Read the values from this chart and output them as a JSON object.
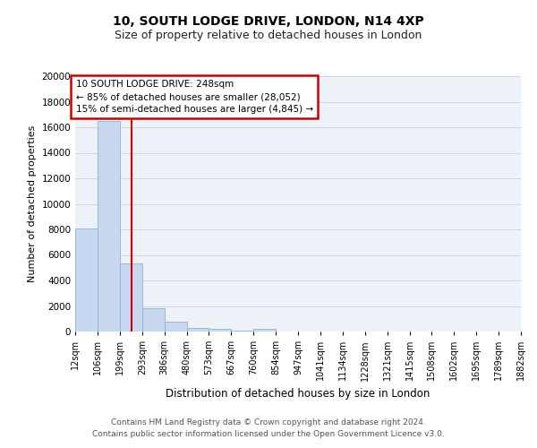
{
  "title1": "10, SOUTH LODGE DRIVE, LONDON, N14 4XP",
  "title2": "Size of property relative to detached houses in London",
  "xlabel": "Distribution of detached houses by size in London",
  "ylabel": "Number of detached properties",
  "footnote1": "Contains HM Land Registry data © Crown copyright and database right 2024.",
  "footnote2": "Contains public sector information licensed under the Open Government Licence v3.0.",
  "annotation_line1": "10 SOUTH LODGE DRIVE: 248sqm",
  "annotation_line2": "← 85% of detached houses are smaller (28,052)",
  "annotation_line3": "15% of semi-detached houses are larger (4,845) →",
  "bar_color": "#c8d8ee",
  "bar_edge_color": "#8ab4d8",
  "red_line_x": 248,
  "categories": [
    "12sqm",
    "106sqm",
    "199sqm",
    "293sqm",
    "386sqm",
    "480sqm",
    "573sqm",
    "667sqm",
    "760sqm",
    "854sqm",
    "947sqm",
    "1041sqm",
    "1134sqm",
    "1228sqm",
    "1321sqm",
    "1415sqm",
    "1508sqm",
    "1602sqm",
    "1695sqm",
    "1789sqm",
    "1882sqm"
  ],
  "bin_edges": [
    12,
    106,
    199,
    293,
    386,
    480,
    573,
    667,
    760,
    854,
    947,
    1041,
    1134,
    1228,
    1321,
    1415,
    1508,
    1602,
    1695,
    1789,
    1882
  ],
  "values": [
    8100,
    16500,
    5300,
    1800,
    800,
    250,
    200,
    50,
    200,
    0,
    0,
    0,
    0,
    0,
    0,
    0,
    0,
    0,
    0,
    0,
    0
  ],
  "ylim": [
    0,
    20000
  ],
  "yticks": [
    0,
    2000,
    4000,
    6000,
    8000,
    10000,
    12000,
    14000,
    16000,
    18000,
    20000
  ],
  "grid_color": "#cdd6e8",
  "background_color": "#edf1f8",
  "annotation_box_color": "#ffffff",
  "annotation_box_edge": "#cc0000",
  "red_line_color": "#cc0000",
  "title_fontsize": 10,
  "subtitle_fontsize": 9
}
